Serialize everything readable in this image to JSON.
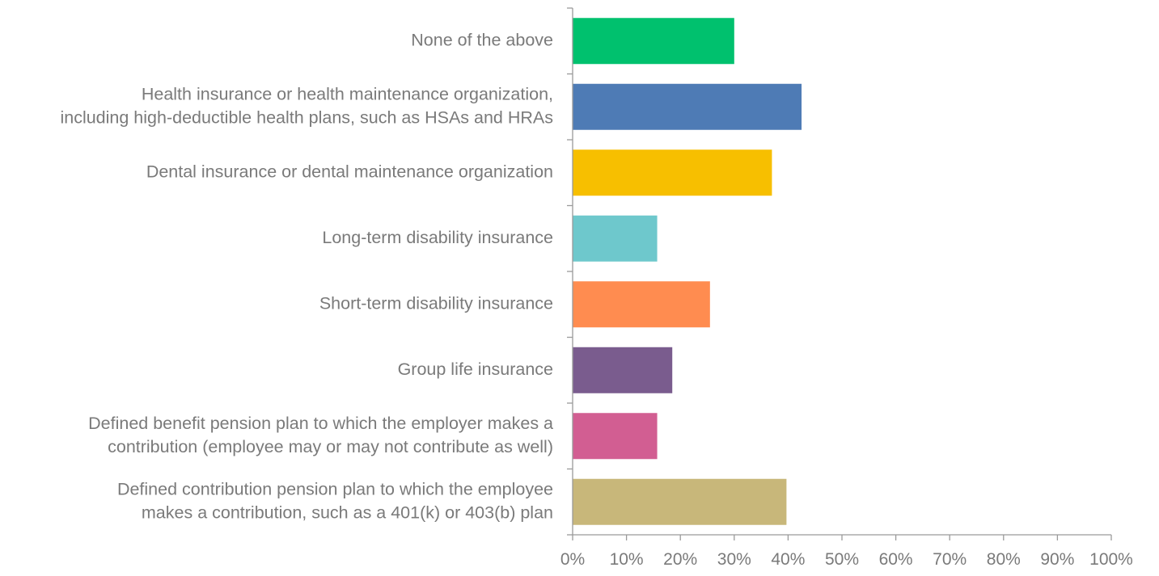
{
  "chart_data": {
    "type": "bar",
    "orientation": "horizontal",
    "title": "",
    "xlabel": "",
    "ylabel": "",
    "xlim": [
      0,
      100
    ],
    "x_ticks": [
      "0%",
      "10%",
      "20%",
      "30%",
      "40%",
      "50%",
      "60%",
      "70%",
      "80%",
      "90%",
      "100%"
    ],
    "grid": false,
    "legend": "none",
    "categories": [
      [
        "None of the above"
      ],
      [
        "Health insurance or health maintenance organization,",
        "including high-deductible health plans, such as HSAs and HRAs"
      ],
      [
        "Dental insurance or dental maintenance organization"
      ],
      [
        "Long-term disability insurance"
      ],
      [
        "Short-term disability insurance"
      ],
      [
        "Group life insurance"
      ],
      [
        "Defined benefit pension plan to which the employer makes a",
        "contribution (employee may or may not contribute as well)"
      ],
      [
        "Defined contribution pension plan to which the employee",
        "makes a contribution, such as a 401(k) or 403(b) plan"
      ]
    ],
    "values": [
      30,
      42.5,
      37,
      15.7,
      25.5,
      18.5,
      15.7,
      39.7
    ],
    "colors": [
      "#00c16e",
      "#4e7bb5",
      "#f7bf00",
      "#6ec8cc",
      "#ff8c50",
      "#7a5c8e",
      "#d25e92",
      "#c8b77a"
    ],
    "value_unit": "%"
  }
}
